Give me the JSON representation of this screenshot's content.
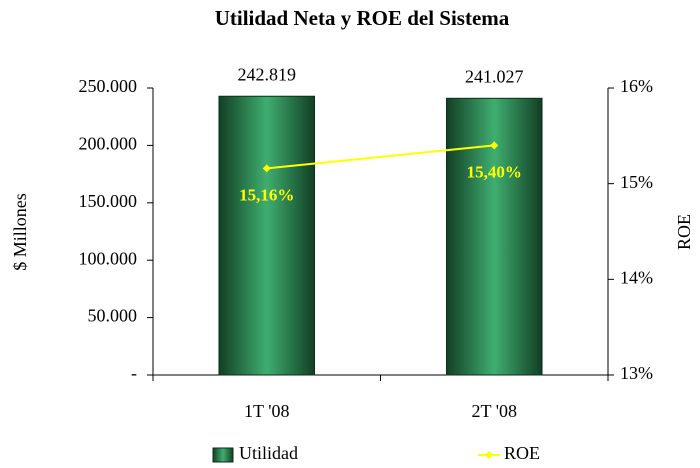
{
  "chart_data": {
    "type": "bar",
    "title": "Utilidad Neta y ROE del Sistema",
    "y_label": "$ Millones",
    "y2_label": "ROE",
    "categories": [
      "1T '08",
      "2T '08"
    ],
    "series": [
      {
        "name": "Utilidad",
        "color": "#2e8b57",
        "values": [
          242819,
          241027
        ],
        "value_labels": [
          "242.819",
          "241.027"
        ]
      },
      {
        "name": "ROE",
        "color": "#ffff00",
        "axis": "y2",
        "values": [
          15.16,
          15.4
        ],
        "value_labels": [
          "15,16%",
          "15,40%"
        ]
      }
    ],
    "ylim": [
      0,
      250000
    ],
    "yticks": [
      {
        "value": 0,
        "label": "-"
      },
      {
        "value": 50000,
        "label": "50.000"
      },
      {
        "value": 100000,
        "label": "100.000"
      },
      {
        "value": 150000,
        "label": "150.000"
      },
      {
        "value": 200000,
        "label": "200.000"
      },
      {
        "value": 250000,
        "label": "250.000"
      }
    ],
    "y2lim": [
      13,
      16
    ],
    "y2ticks": [
      {
        "value": 13,
        "label": "13%"
      },
      {
        "value": 14,
        "label": "14%"
      },
      {
        "value": 15,
        "label": "15%"
      },
      {
        "value": 16,
        "label": "16%"
      }
    ],
    "legend": "bottom"
  }
}
